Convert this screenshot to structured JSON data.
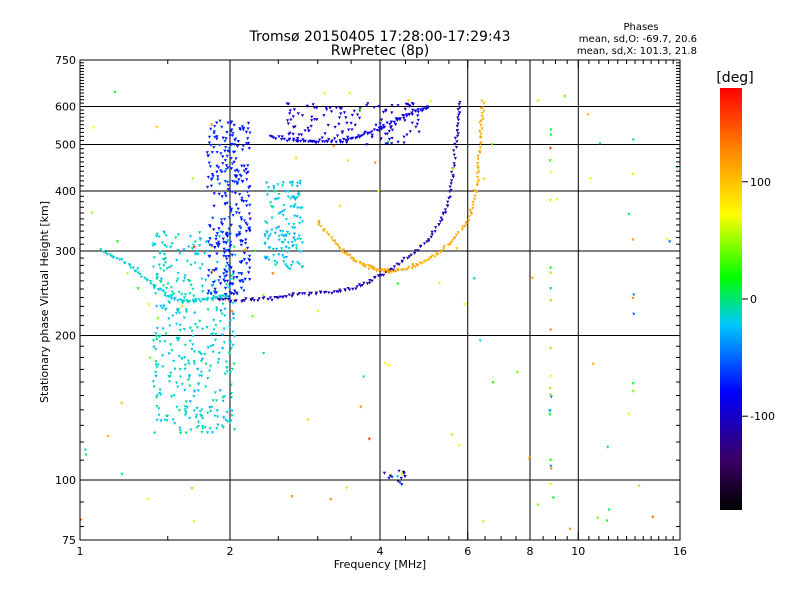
{
  "chart_data": {
    "type": "scatter",
    "title": "Tromsø 20150405 17:28:00-17:29:43",
    "subtitle": "RwPretec (8p)",
    "xlabel": "Frequency [MHz]",
    "ylabel": "Stationary phase Virtual Height [km]",
    "x_scale": "log",
    "y_scale": "log",
    "xlim": [
      1,
      16
    ],
    "ylim": [
      75,
      750
    ],
    "x_ticks": [
      1,
      2,
      4,
      6,
      8,
      10,
      16
    ],
    "x_tick_labels": [
      "1",
      "2",
      "4",
      "6",
      "8",
      "10",
      "16"
    ],
    "x_grid": [
      2,
      4,
      6,
      8,
      10
    ],
    "y_ticks": [
      75,
      100,
      200,
      300,
      400,
      500,
      600,
      750
    ],
    "y_tick_labels": [
      "75",
      "100",
      "200",
      "300",
      "400",
      "500",
      "600",
      "750"
    ],
    "y_grid": [
      100,
      200,
      300,
      400,
      500,
      600
    ],
    "grid": true,
    "legend_title": "Phases",
    "legend_lines": [
      "mean, sd,O: -69.7, 20.6",
      "mean, sd,X: 101.3, 21.8"
    ],
    "colorbar": {
      "label": "[deg]",
      "range": [
        -180,
        180
      ],
      "ticks": [
        100,
        0,
        -100
      ],
      "tick_labels": [
        "100",
        "0",
        "-100"
      ],
      "colors": [
        "#000000",
        "#3a0066",
        "#0000ff",
        "#00c8ff",
        "#00ff00",
        "#ffff00",
        "#ff8800",
        "#ff0000"
      ]
    },
    "series": [
      {
        "type": "trace",
        "points": [
          [
            1.1,
            300
          ],
          [
            1.2,
            288
          ],
          [
            1.3,
            272
          ],
          [
            1.4,
            255
          ],
          [
            1.5,
            242
          ],
          [
            1.6,
            236
          ],
          [
            1.7,
            236
          ],
          [
            1.8,
            238
          ],
          [
            1.9,
            240
          ],
          [
            2.0,
            242
          ]
        ],
        "color_value": -15
      },
      {
        "type": "trace",
        "points": [
          [
            1.9,
            238
          ],
          [
            2.1,
            236
          ],
          [
            2.3,
            238
          ],
          [
            2.5,
            240
          ],
          [
            2.7,
            243
          ],
          [
            3.0,
            245
          ],
          [
            3.3,
            247
          ],
          [
            3.6,
            252
          ],
          [
            3.9,
            262
          ],
          [
            4.2,
            275
          ],
          [
            4.6,
            292
          ],
          [
            5.0,
            315
          ],
          [
            5.3,
            345
          ],
          [
            5.5,
            380
          ],
          [
            5.6,
            430
          ],
          [
            5.7,
            500
          ],
          [
            5.75,
            560
          ],
          [
            5.8,
            620
          ]
        ],
        "color_value": -110
      },
      {
        "type": "trace",
        "points": [
          [
            3.0,
            345
          ],
          [
            3.2,
            318
          ],
          [
            3.4,
            297
          ],
          [
            3.6,
            284
          ],
          [
            3.8,
            277
          ],
          [
            4.0,
            273
          ],
          [
            4.2,
            272
          ],
          [
            4.5,
            275
          ],
          [
            4.8,
            282
          ],
          [
            5.2,
            295
          ],
          [
            5.6,
            315
          ],
          [
            6.0,
            345
          ],
          [
            6.2,
            385
          ],
          [
            6.3,
            440
          ],
          [
            6.35,
            500
          ],
          [
            6.4,
            560
          ],
          [
            6.45,
            620
          ]
        ],
        "color_value": 110
      },
      {
        "type": "trace",
        "points": [
          [
            2.4,
            520
          ],
          [
            2.6,
            512
          ],
          [
            2.8,
            508
          ],
          [
            3.0,
            506
          ],
          [
            3.3,
            508
          ],
          [
            3.6,
            518
          ],
          [
            3.9,
            535
          ],
          [
            4.2,
            555
          ],
          [
            4.5,
            575
          ],
          [
            4.8,
            590
          ],
          [
            5.0,
            600
          ]
        ],
        "color_value": -90
      },
      {
        "type": "cloud",
        "xrange": [
          1.4,
          2.05
        ],
        "yrange": [
          125,
          330
        ],
        "n": 380,
        "color_value": -15
      },
      {
        "type": "cloud",
        "xrange": [
          1.8,
          2.2
        ],
        "yrange": [
          240,
          560
        ],
        "n": 300,
        "color_value": -70
      },
      {
        "type": "cloud",
        "xrange": [
          2.35,
          2.8
        ],
        "yrange": [
          275,
          420
        ],
        "n": 140,
        "color_value": -20
      },
      {
        "type": "cloud",
        "xrange": [
          2.6,
          4.8
        ],
        "yrange": [
          500,
          610
        ],
        "n": 130,
        "color_value": -95
      },
      {
        "type": "cloud",
        "xrange": [
          1.0,
          16.0
        ],
        "yrange": [
          78,
          660
        ],
        "n": 95,
        "color_value": 60
      },
      {
        "type": "column",
        "x": 8.8,
        "yrange": [
          90,
          560
        ],
        "n": 22,
        "color_value": 40
      },
      {
        "type": "column",
        "x": 12.9,
        "yrange": [
          135,
          640
        ],
        "n": 8,
        "color_value": 50
      },
      {
        "type": "cloud",
        "xrange": [
          4.0,
          4.6
        ],
        "yrange": [
          97,
          105
        ],
        "n": 14,
        "color_value": -110
      }
    ]
  }
}
